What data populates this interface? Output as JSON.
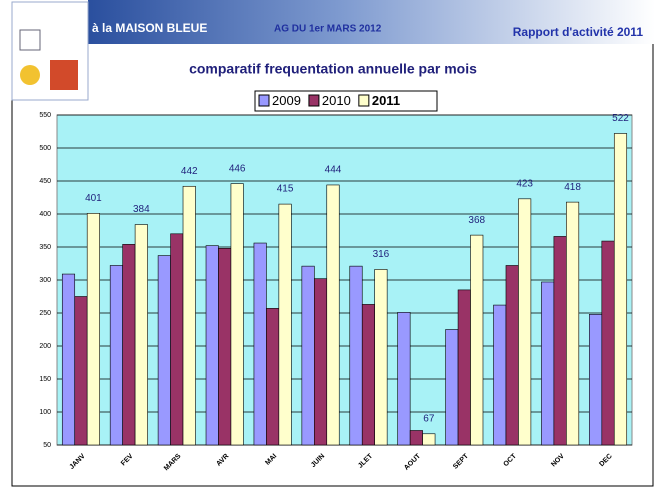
{
  "header": {
    "left": "à la MAISON BLEUE",
    "center": "AG DU 1er MARS 2012",
    "right": "Rapport d'activité 2011"
  },
  "chart_data": {
    "type": "bar",
    "title": "comparatif frequentation annuelle par mois",
    "categories": [
      "JANV",
      "FEV",
      "MARS",
      "AVR",
      "MAI",
      "JUIN",
      "JLET",
      "AOUT",
      "SEPT",
      "OCT",
      "NOV",
      "DEC"
    ],
    "series": [
      {
        "name": "2009",
        "color": "#9999ff",
        "values": [
          309,
          322,
          337,
          352,
          356,
          321,
          321,
          251,
          225,
          262,
          297,
          248
        ]
      },
      {
        "name": "2010",
        "color": "#993366",
        "values": [
          275,
          354,
          370,
          348,
          257,
          302,
          263,
          72,
          285,
          322,
          366,
          359
        ]
      },
      {
        "name": "2011",
        "color": "#ffffcc",
        "values": [
          401,
          384,
          442,
          446,
          415,
          444,
          316,
          67,
          368,
          423,
          418,
          522
        ]
      }
    ],
    "ylim": [
      50,
      550
    ],
    "yticks": [
      50,
      100,
      150,
      200,
      250,
      300,
      350,
      400,
      450,
      500,
      550
    ],
    "grid": true
  }
}
